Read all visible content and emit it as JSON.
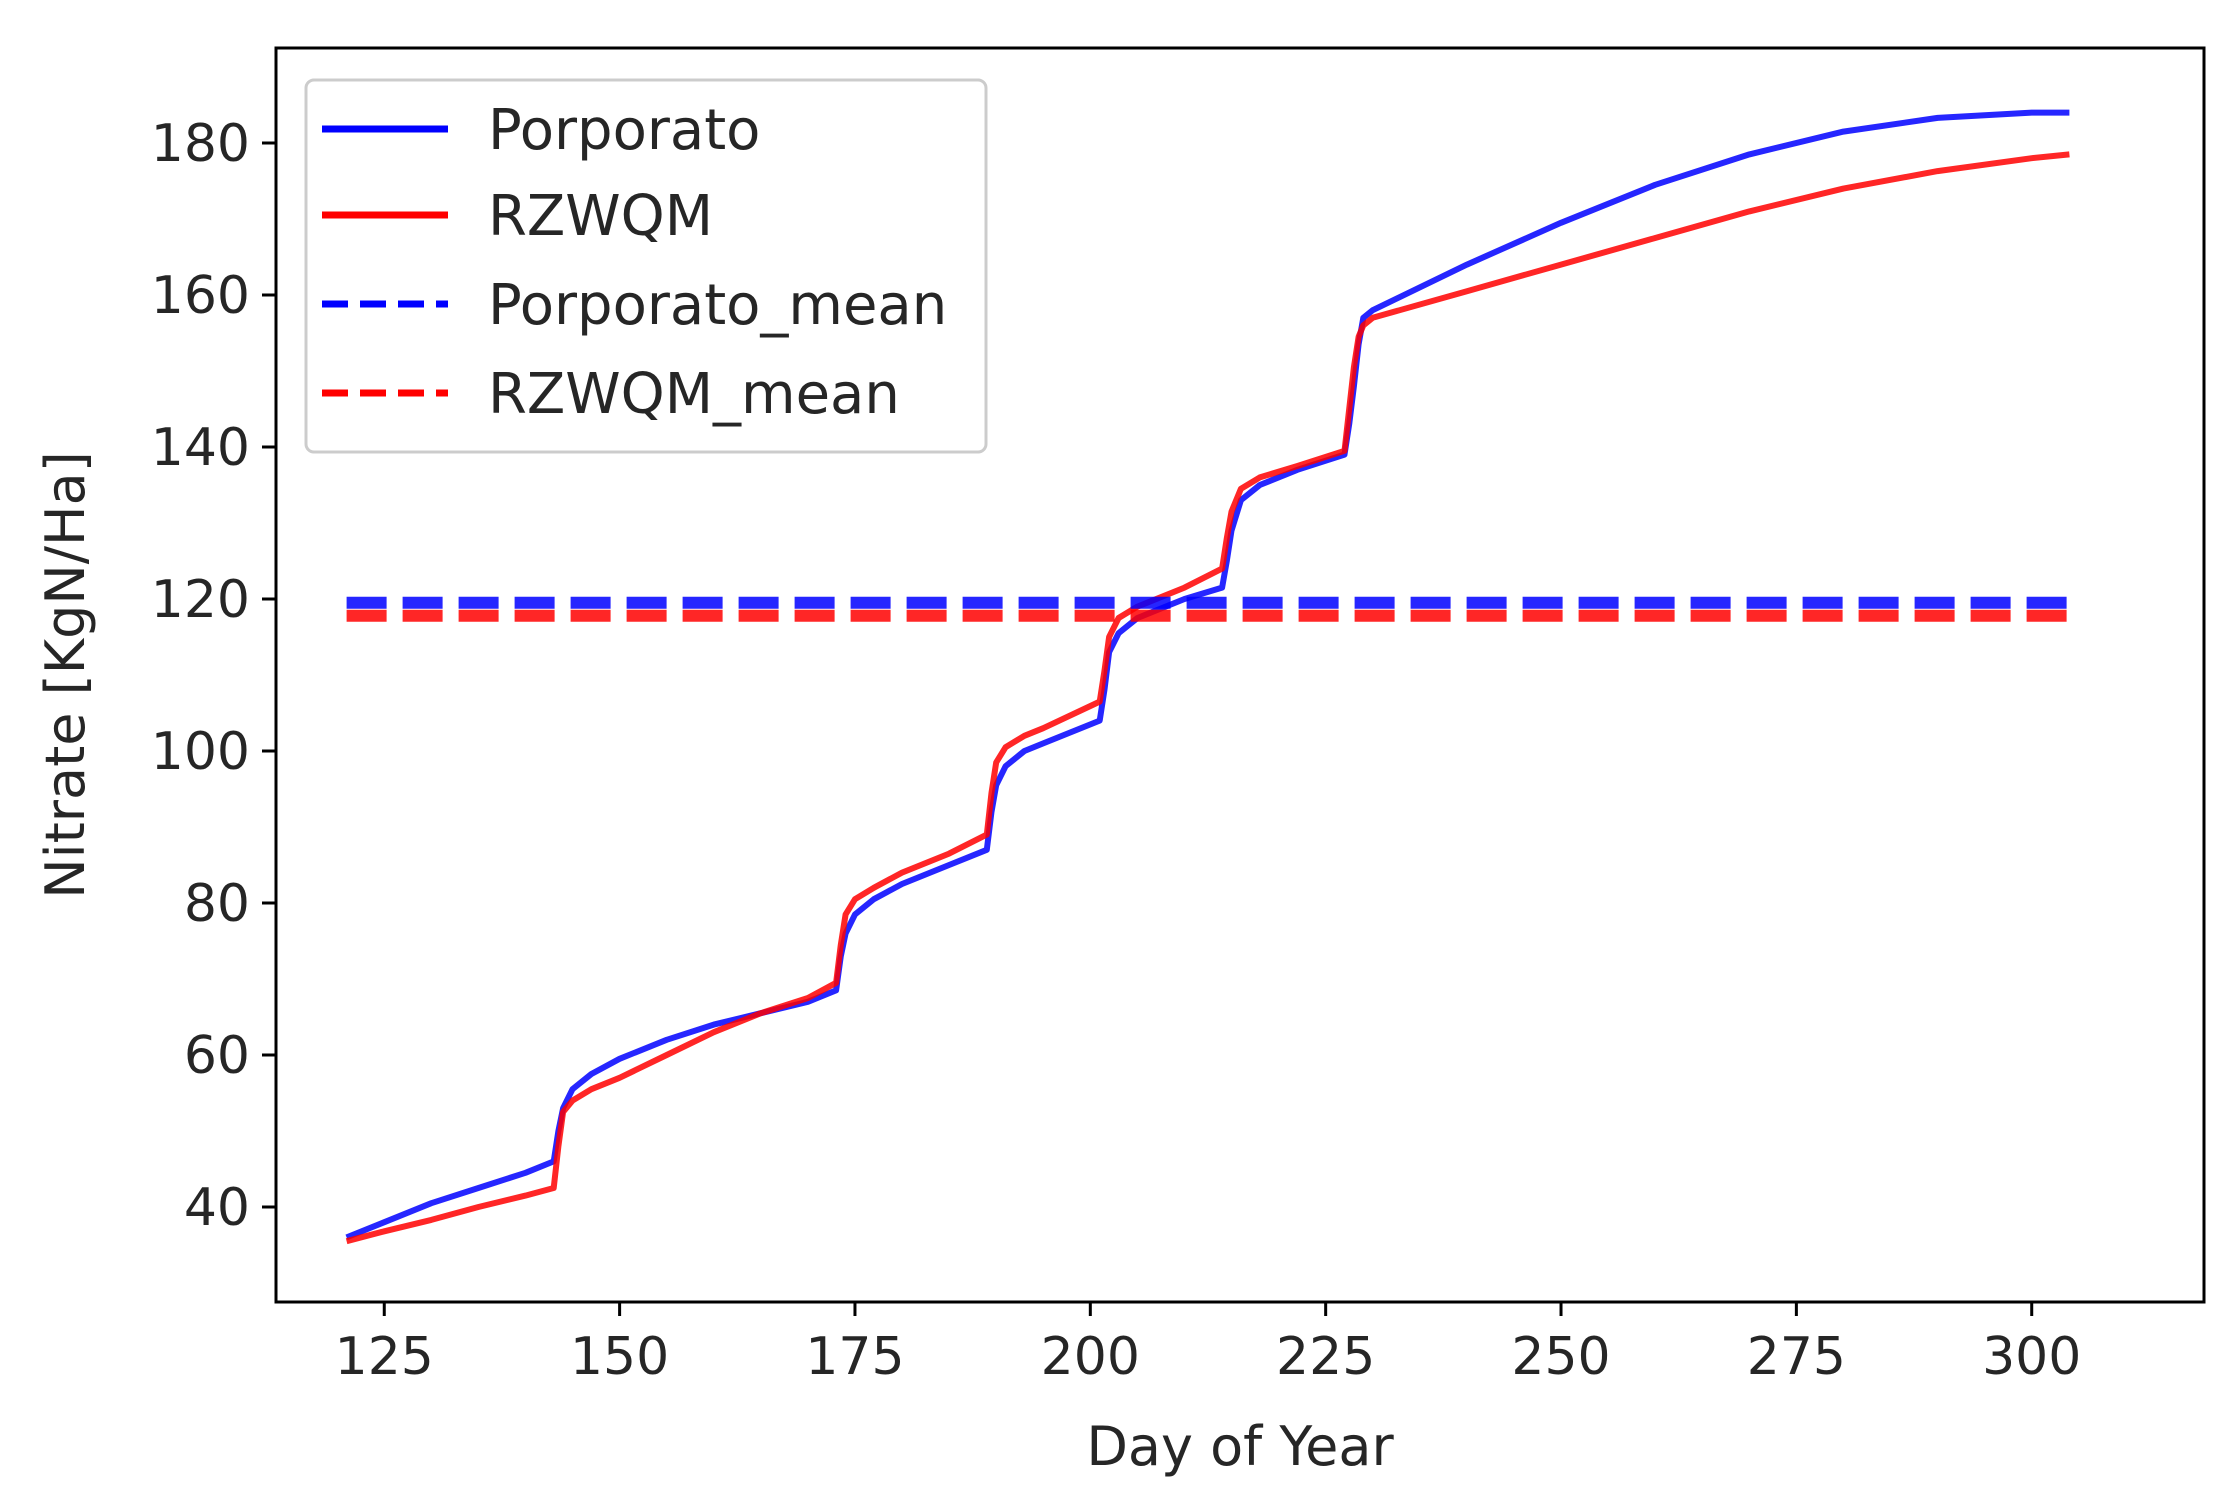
{
  "chart_data": {
    "type": "line",
    "title": "",
    "xlabel": "Day of Year",
    "ylabel": "Nitrate [KgN/Ha]",
    "xlim": [
      113.5,
      318.3
    ],
    "ylim": [
      27.5,
      192.5
    ],
    "xticks": [
      125,
      150,
      175,
      200,
      225,
      250,
      275,
      300
    ],
    "yticks": [
      40,
      60,
      80,
      100,
      120,
      140,
      160,
      180
    ],
    "grid": false,
    "legend_position": "top-left",
    "series": [
      {
        "name": "Porporato",
        "color": "#0000ff",
        "style": "solid",
        "x": [
          121,
          125,
          130,
          135,
          140,
          143,
          143.5,
          144,
          145,
          147,
          150,
          155,
          160,
          165,
          170,
          173,
          173.5,
          174,
          175,
          177,
          180,
          185,
          189,
          189.5,
          190,
          191,
          193,
          195,
          201,
          201.5,
          202,
          203,
          205,
          210,
          214,
          214.5,
          215,
          216,
          218,
          222,
          227,
          227.5,
          228,
          228.5,
          229,
          230,
          240,
          250,
          260,
          270,
          280,
          290,
          300,
          304
        ],
        "y": [
          36,
          38,
          40.5,
          42.5,
          44.5,
          46,
          50,
          53,
          55.5,
          57.5,
          59.5,
          62,
          64,
          65.5,
          67,
          68.5,
          73,
          76,
          78.5,
          80.5,
          82.5,
          85,
          87,
          92,
          95.5,
          98,
          100,
          101,
          104,
          108,
          113,
          115.5,
          117.5,
          120,
          121.5,
          125,
          129,
          133,
          135,
          137,
          139,
          143,
          148,
          153.5,
          157,
          158,
          164,
          169.5,
          174.5,
          178.5,
          181.5,
          183.3,
          184,
          184
        ]
      },
      {
        "name": "RZWQM",
        "color": "#ff0000",
        "style": "solid",
        "x": [
          121,
          125,
          130,
          135,
          140,
          143,
          143.5,
          144,
          145,
          147,
          150,
          155,
          160,
          165,
          170,
          173,
          173.5,
          174,
          175,
          177,
          180,
          185,
          189,
          189.5,
          190,
          191,
          193,
          195,
          201,
          201.5,
          202,
          203,
          205,
          210,
          214,
          214.5,
          215,
          216,
          218,
          222,
          227,
          227.5,
          228,
          228.5,
          229,
          230,
          240,
          250,
          260,
          270,
          280,
          290,
          300,
          304
        ],
        "y": [
          35.5,
          36.8,
          38.3,
          40,
          41.5,
          42.5,
          48,
          52.5,
          54,
          55.5,
          57,
          60,
          63,
          65.5,
          67.5,
          69.5,
          74.5,
          78.5,
          80.5,
          82,
          84,
          86.5,
          89,
          94.5,
          98.5,
          100.5,
          102,
          103,
          106.5,
          110.5,
          115,
          117.5,
          119,
          121.5,
          124,
          128,
          131.5,
          134.5,
          136,
          137.5,
          139.5,
          145,
          150.5,
          154.5,
          156,
          157,
          160.5,
          164,
          167.5,
          171,
          174,
          176.3,
          178,
          178.5
        ]
      },
      {
        "name": "Porporato_mean",
        "color": "#0000ff",
        "style": "dashed",
        "x": [
          121,
          304
        ],
        "y": [
          119.5,
          119.5
        ]
      },
      {
        "name": "RZWQM_mean",
        "color": "#ff0000",
        "style": "dashed",
        "x": [
          121,
          304
        ],
        "y": [
          117.8,
          117.8
        ]
      }
    ]
  }
}
